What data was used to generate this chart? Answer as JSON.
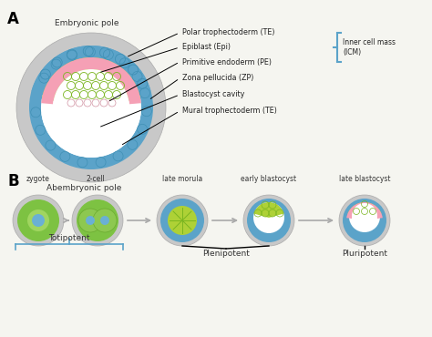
{
  "bg_color": "#f5f5f0",
  "panel_A": {
    "label": "A",
    "embryonic_pole": "Embryonic pole",
    "abembryonic_pole": "Abembryonic pole",
    "labels": [
      "Polar trophectoderm (TE)",
      "Epiblast (Epi)",
      "Primitive endoderm (PE)",
      "Zona pellucida (ZP)",
      "Blastocyst cavity",
      "Mural trophectoderm (TE)"
    ],
    "icm_label": "Inner cell mass\n(ICM)",
    "outer_ring_color": "#c8c8c8",
    "blue_layer_color": "#5ba3c9",
    "cavity_color": "#ffffff",
    "epiblast_color": "#aed136",
    "pe_color": "#f5a0b5",
    "polar_te_color": "#5ba3c9",
    "bracket_color": "#5ba3c9"
  },
  "panel_B": {
    "label": "B",
    "stages": [
      "zygote",
      "2-cell",
      "late morula",
      "early blastocyst",
      "late blastocyst"
    ],
    "totipotent": "Totipotent",
    "plenipotent": "Plenipotent",
    "pluripotent": "Pluripotent",
    "arrow_color": "#bbbbbb",
    "outer_color": "#c8c8c8",
    "green_color": "#7dc242",
    "blue_inner": "#5ba3c9",
    "nucleus_color": "#6ab0d4",
    "epiblast_color": "#aed136",
    "pe_color": "#f5a0b5",
    "bracket_color": "#5ba3c9",
    "line_color": "#333333"
  }
}
